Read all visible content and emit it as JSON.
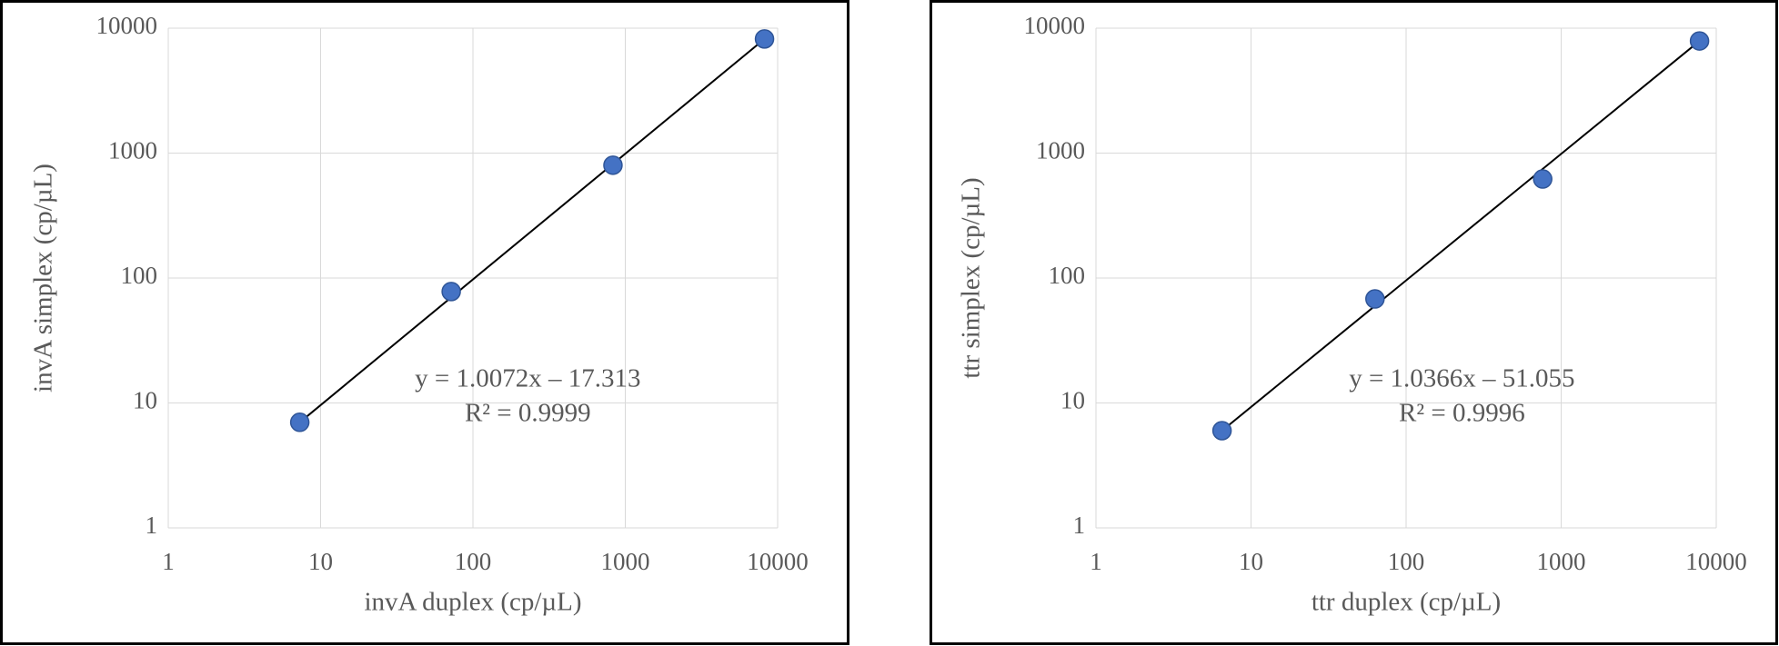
{
  "chart_data": [
    {
      "type": "scatter",
      "x_label": "invA duplex (cp/µL)",
      "y_label": "invA  simplex  (cp/µL)",
      "log_x": true,
      "log_y": true,
      "grid": true,
      "xlim": [
        1,
        10000
      ],
      "ylim": [
        1,
        10000
      ],
      "xticks": [
        1,
        10,
        100,
        1000,
        10000
      ],
      "yticks": [
        1,
        10,
        100,
        1000,
        10000
      ],
      "series": [
        {
          "color": "#4472c4",
          "x": [
            7.3,
            72,
            830,
            8200
          ],
          "values": [
            7,
            78,
            800,
            8200
          ]
        }
      ],
      "trendline": {
        "equation": "y = 1.0072x – 17.313",
        "r_squared": "R² = 0.9999"
      }
    },
    {
      "type": "scatter",
      "x_label": "ttr duplex  (cp/µL)",
      "y_label": "ttr simplex  (cp/µL)",
      "log_x": true,
      "log_y": true,
      "grid": true,
      "xlim": [
        1,
        10000
      ],
      "ylim": [
        1,
        10000
      ],
      "xticks": [
        1,
        10,
        100,
        1000,
        10000
      ],
      "yticks": [
        1,
        10,
        100,
        1000,
        10000
      ],
      "series": [
        {
          "color": "#4472c4",
          "x": [
            6.5,
            63,
            760,
            7800
          ],
          "values": [
            6,
            68,
            620,
            7900
          ]
        }
      ],
      "trendline": {
        "equation": "y = 1.0366x – 51.055",
        "r_squared": "R² = 0.9996"
      }
    }
  ]
}
